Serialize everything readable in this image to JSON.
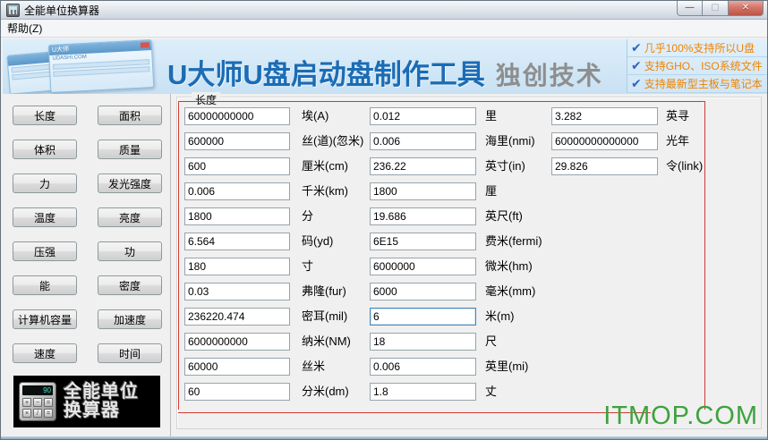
{
  "window": {
    "title": "全能单位换算器",
    "controls": {
      "minimize": "—",
      "maximize": "▢",
      "close": "✕"
    },
    "menu": {
      "help": "帮助(Z)"
    }
  },
  "banner": {
    "headline": "U大师U盘启动盘制作工具",
    "tagline": "独创技术",
    "thumb": {
      "title": "U大师",
      "subtitle": "UDASHI.COM"
    },
    "features": [
      "几乎100%支持所以U盘",
      "支持GHO、ISO系统文件",
      "支持最新型主板与笔记本"
    ]
  },
  "sidebar": {
    "categories": [
      "长度",
      "面积",
      "体积",
      "质量",
      "力",
      "发光强度",
      "温度",
      "亮度",
      "压强",
      "功",
      "能",
      "密度",
      "计算机容量",
      "加速度",
      "速度",
      "时间"
    ],
    "logo": {
      "line1": "全能单位",
      "line2": "换算器",
      "screen": "90",
      "keys": [
        "+",
        "−",
        "=",
        "×",
        "/",
        "="
      ]
    }
  },
  "converter": {
    "group_title": "长度",
    "rows": [
      {
        "cells": [
          {
            "value": "60000000000",
            "unit": "埃(A)"
          },
          {
            "value": "0.012",
            "unit": "里"
          },
          {
            "value": "3.282",
            "unit": "英寻"
          }
        ]
      },
      {
        "cells": [
          {
            "value": "600000",
            "unit": "丝(道)(忽米)"
          },
          {
            "value": "0.006",
            "unit": "海里(nmi)"
          },
          {
            "value": "60000000000000",
            "unit": "光年"
          }
        ]
      },
      {
        "cells": [
          {
            "value": "600",
            "unit": "厘米(cm)"
          },
          {
            "value": "236.22",
            "unit": "英寸(in)"
          },
          {
            "value": "29.826",
            "unit": "令(link)"
          }
        ]
      },
      {
        "cells": [
          {
            "value": "0.006",
            "unit": "千米(km)"
          },
          {
            "value": "1800",
            "unit": "厘"
          }
        ]
      },
      {
        "cells": [
          {
            "value": "1800",
            "unit": "分"
          },
          {
            "value": "19.686",
            "unit": "英尺(ft)"
          }
        ]
      },
      {
        "cells": [
          {
            "value": "6.564",
            "unit": "码(yd)"
          },
          {
            "value": "6E15",
            "unit": "费米(fermi)"
          }
        ]
      },
      {
        "cells": [
          {
            "value": "180",
            "unit": "寸"
          },
          {
            "value": "6000000",
            "unit": "微米(hm)"
          }
        ]
      },
      {
        "cells": [
          {
            "value": "0.03",
            "unit": "弗隆(fur)"
          },
          {
            "value": "6000",
            "unit": "毫米(mm)"
          }
        ]
      },
      {
        "cells": [
          {
            "value": "236220.474",
            "unit": "密耳(mil)"
          },
          {
            "value": "6",
            "unit": "米(m)",
            "focused": true
          }
        ]
      },
      {
        "cells": [
          {
            "value": "6000000000",
            "unit": "纳米(NM)"
          },
          {
            "value": "18",
            "unit": "尺"
          }
        ]
      },
      {
        "cells": [
          {
            "value": "60000",
            "unit": "丝米"
          },
          {
            "value": "0.006",
            "unit": "英里(mi)"
          }
        ]
      },
      {
        "cells": [
          {
            "value": "60",
            "unit": "分米(dm)"
          },
          {
            "value": "1.8",
            "unit": "丈"
          }
        ]
      }
    ]
  },
  "watermark": "ITMOP.COM",
  "colors": {
    "headline_blue": "#1b6cb5",
    "tagline_gray": "#8e8e8e",
    "feature_orange": "#f08300",
    "check_blue": "#2f66c0",
    "annotation_red": "#cf3a32",
    "watermark_green": "#3da23d",
    "focus_blue": "#4a86b8"
  }
}
